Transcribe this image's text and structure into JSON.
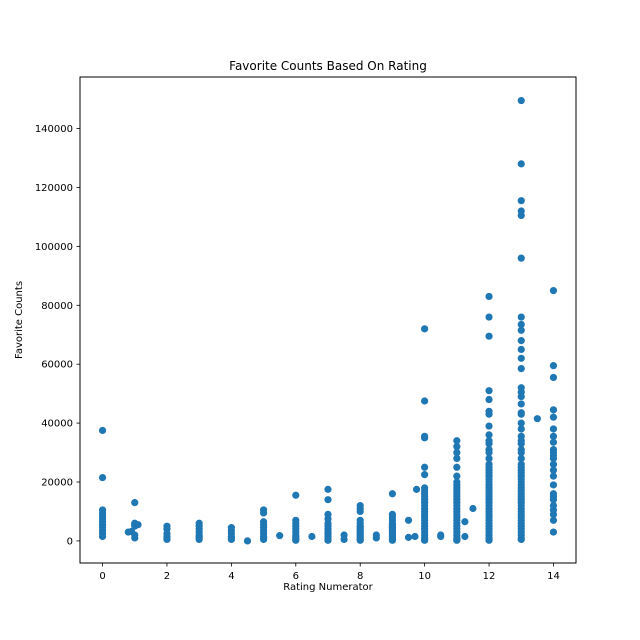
{
  "chart_data": {
    "type": "scatter",
    "title": "Favorite Counts Based On Rating",
    "xlabel": "Rating Numerator",
    "ylabel": "Favorite Counts",
    "xlim": [
      -0.7,
      14.7
    ],
    "ylim": [
      -7500,
      157500
    ],
    "xticks": [
      0,
      2,
      4,
      6,
      8,
      10,
      12,
      14
    ],
    "yticks": [
      0,
      20000,
      40000,
      60000,
      80000,
      100000,
      120000,
      140000
    ],
    "grid": false,
    "legend": "none",
    "marker_color": "#1f77b4",
    "series": [
      {
        "points": [
          [
            0,
            37500
          ],
          [
            0,
            21500
          ],
          [
            0,
            10500
          ],
          [
            0,
            9500
          ],
          [
            0,
            8500
          ],
          [
            0,
            7500
          ],
          [
            0,
            6500
          ],
          [
            0,
            5500
          ],
          [
            0,
            4500
          ],
          [
            0,
            3500
          ],
          [
            0,
            2500
          ],
          [
            0,
            1500
          ],
          [
            0.8,
            3000
          ],
          [
            0.9,
            3200
          ],
          [
            1,
            13000
          ],
          [
            1,
            6000
          ],
          [
            1,
            5500
          ],
          [
            1,
            5000
          ],
          [
            1,
            2000
          ],
          [
            1,
            1000
          ],
          [
            1.1,
            5500
          ],
          [
            2,
            5000
          ],
          [
            2,
            4000
          ],
          [
            2,
            2500
          ],
          [
            2,
            1500
          ],
          [
            2,
            1000
          ],
          [
            2,
            500
          ],
          [
            3,
            6000
          ],
          [
            3,
            5000
          ],
          [
            3,
            4000
          ],
          [
            3,
            3000
          ],
          [
            3,
            2000
          ],
          [
            3,
            1500
          ],
          [
            3,
            1000
          ],
          [
            3,
            500
          ],
          [
            4,
            4500
          ],
          [
            4,
            3500
          ],
          [
            4,
            2500
          ],
          [
            4,
            1500
          ],
          [
            4,
            1000
          ],
          [
            4,
            500
          ],
          [
            4.5,
            0
          ],
          [
            5,
            10500
          ],
          [
            5,
            9500
          ],
          [
            5,
            6500
          ],
          [
            5,
            5500
          ],
          [
            5,
            4500
          ],
          [
            5,
            3500
          ],
          [
            5,
            2500
          ],
          [
            5,
            1500
          ],
          [
            5,
            1000
          ],
          [
            5,
            500
          ],
          [
            5.5,
            1800
          ],
          [
            6,
            15500
          ],
          [
            6,
            7000
          ],
          [
            6,
            6000
          ],
          [
            6,
            5000
          ],
          [
            6,
            4000
          ],
          [
            6,
            3000
          ],
          [
            6,
            2000
          ],
          [
            6,
            1500
          ],
          [
            6,
            1000
          ],
          [
            6,
            500
          ],
          [
            6,
            200
          ],
          [
            6.5,
            1500
          ],
          [
            7,
            17500
          ],
          [
            7,
            14000
          ],
          [
            7,
            9000
          ],
          [
            7,
            7500
          ],
          [
            7,
            6000
          ],
          [
            7,
            5000
          ],
          [
            7,
            4000
          ],
          [
            7,
            3000
          ],
          [
            7,
            2500
          ],
          [
            7,
            2000
          ],
          [
            7,
            1500
          ],
          [
            7,
            1000
          ],
          [
            7,
            500
          ],
          [
            7,
            200
          ],
          [
            7.5,
            2000
          ],
          [
            7.5,
            500
          ],
          [
            8,
            12000
          ],
          [
            8,
            11000
          ],
          [
            8,
            10000
          ],
          [
            8,
            7000
          ],
          [
            8,
            6000
          ],
          [
            8,
            5000
          ],
          [
            8,
            4500
          ],
          [
            8,
            4000
          ],
          [
            8,
            3500
          ],
          [
            8,
            3000
          ],
          [
            8,
            2500
          ],
          [
            8,
            2000
          ],
          [
            8,
            1500
          ],
          [
            8,
            1000
          ],
          [
            8,
            500
          ],
          [
            8,
            200
          ],
          [
            8.5,
            2000
          ],
          [
            8.5,
            1000
          ],
          [
            9,
            16000
          ],
          [
            9,
            9000
          ],
          [
            9,
            8000
          ],
          [
            9,
            7000
          ],
          [
            9,
            6000
          ],
          [
            9,
            5500
          ],
          [
            9,
            5000
          ],
          [
            9,
            4500
          ],
          [
            9,
            4000
          ],
          [
            9,
            3500
          ],
          [
            9,
            3000
          ],
          [
            9,
            2500
          ],
          [
            9,
            2000
          ],
          [
            9,
            1500
          ],
          [
            9,
            1000
          ],
          [
            9,
            500
          ],
          [
            9,
            200
          ],
          [
            9.5,
            7000
          ],
          [
            9.5,
            1200
          ],
          [
            9.7,
            1500
          ],
          [
            9.75,
            17500
          ],
          [
            10,
            72000
          ],
          [
            10,
            47500
          ],
          [
            10,
            35500
          ],
          [
            10,
            35000
          ],
          [
            10,
            25000
          ],
          [
            10,
            22500
          ],
          [
            10,
            18000
          ],
          [
            10,
            17000
          ],
          [
            10,
            16000
          ],
          [
            10,
            15000
          ],
          [
            10,
            14000
          ],
          [
            10,
            13000
          ],
          [
            10,
            12000
          ],
          [
            10,
            11000
          ],
          [
            10,
            10000
          ],
          [
            10,
            9000
          ],
          [
            10,
            8000
          ],
          [
            10,
            7000
          ],
          [
            10,
            6000
          ],
          [
            10,
            5000
          ],
          [
            10,
            4000
          ],
          [
            10,
            3000
          ],
          [
            10,
            2000
          ],
          [
            10,
            1000
          ],
          [
            10,
            500
          ],
          [
            10,
            200
          ],
          [
            10.5,
            2000
          ],
          [
            10.5,
            1500
          ],
          [
            11,
            34000
          ],
          [
            11,
            32000
          ],
          [
            11,
            30000
          ],
          [
            11,
            28000
          ],
          [
            11,
            25000
          ],
          [
            11,
            22000
          ],
          [
            11,
            20000
          ],
          [
            11,
            19000
          ],
          [
            11,
            18000
          ],
          [
            11,
            17000
          ],
          [
            11,
            16000
          ],
          [
            11,
            15000
          ],
          [
            11,
            14000
          ],
          [
            11,
            13000
          ],
          [
            11,
            12000
          ],
          [
            11,
            11000
          ],
          [
            11,
            10000
          ],
          [
            11,
            9000
          ],
          [
            11,
            8000
          ],
          [
            11,
            7000
          ],
          [
            11,
            6000
          ],
          [
            11,
            5000
          ],
          [
            11,
            4000
          ],
          [
            11,
            3000
          ],
          [
            11,
            2000
          ],
          [
            11,
            1000
          ],
          [
            11,
            500
          ],
          [
            11,
            200
          ],
          [
            11.25,
            6500
          ],
          [
            11.25,
            1500
          ],
          [
            11.5,
            11000
          ],
          [
            12,
            83000
          ],
          [
            12,
            76000
          ],
          [
            12,
            69500
          ],
          [
            12,
            51000
          ],
          [
            12,
            48000
          ],
          [
            12,
            44000
          ],
          [
            12,
            43000
          ],
          [
            12,
            39000
          ],
          [
            12,
            36000
          ],
          [
            12,
            34000
          ],
          [
            12,
            33000
          ],
          [
            12,
            31000
          ],
          [
            12,
            30000
          ],
          [
            12,
            28000
          ],
          [
            12,
            26000
          ],
          [
            12,
            25000
          ],
          [
            12,
            24000
          ],
          [
            12,
            23000
          ],
          [
            12,
            22000
          ],
          [
            12,
            21000
          ],
          [
            12,
            20000
          ],
          [
            12,
            19000
          ],
          [
            12,
            18000
          ],
          [
            12,
            17000
          ],
          [
            12,
            16000
          ],
          [
            12,
            15000
          ],
          [
            12,
            14000
          ],
          [
            12,
            13000
          ],
          [
            12,
            12000
          ],
          [
            12,
            11000
          ],
          [
            12,
            10000
          ],
          [
            12,
            9000
          ],
          [
            12,
            8000
          ],
          [
            12,
            7000
          ],
          [
            12,
            6000
          ],
          [
            12,
            5000
          ],
          [
            12,
            4000
          ],
          [
            12,
            3000
          ],
          [
            12,
            2000
          ],
          [
            12,
            1000
          ],
          [
            12,
            500
          ],
          [
            12,
            200
          ],
          [
            13,
            149500
          ],
          [
            13,
            128000
          ],
          [
            13,
            115500
          ],
          [
            13,
            112000
          ],
          [
            13,
            110500
          ],
          [
            13,
            96000
          ],
          [
            13,
            76000
          ],
          [
            13,
            73500
          ],
          [
            13,
            71500
          ],
          [
            13,
            68000
          ],
          [
            13,
            65000
          ],
          [
            13,
            62000
          ],
          [
            13,
            58500
          ],
          [
            13,
            52000
          ],
          [
            13,
            50500
          ],
          [
            13,
            49000
          ],
          [
            13,
            46500
          ],
          [
            13,
            43500
          ],
          [
            13,
            43000
          ],
          [
            13,
            40000
          ],
          [
            13,
            38000
          ],
          [
            13,
            35500
          ],
          [
            13,
            34000
          ],
          [
            13,
            33000
          ],
          [
            13,
            31000
          ],
          [
            13,
            30000
          ],
          [
            13,
            28000
          ],
          [
            13,
            26000
          ],
          [
            13,
            25000
          ],
          [
            13,
            24000
          ],
          [
            13,
            23000
          ],
          [
            13,
            22000
          ],
          [
            13,
            21000
          ],
          [
            13,
            20000
          ],
          [
            13,
            19000
          ],
          [
            13,
            18000
          ],
          [
            13,
            17000
          ],
          [
            13,
            16000
          ],
          [
            13,
            15000
          ],
          [
            13,
            14000
          ],
          [
            13,
            13000
          ],
          [
            13,
            12000
          ],
          [
            13,
            11000
          ],
          [
            13,
            10000
          ],
          [
            13,
            9000
          ],
          [
            13,
            8000
          ],
          [
            13,
            7000
          ],
          [
            13,
            6000
          ],
          [
            13,
            5000
          ],
          [
            13,
            4000
          ],
          [
            13,
            3000
          ],
          [
            13,
            2000
          ],
          [
            13,
            1000
          ],
          [
            13,
            500
          ],
          [
            13.5,
            41500
          ],
          [
            14,
            85000
          ],
          [
            14,
            59500
          ],
          [
            14,
            55500
          ],
          [
            14,
            44500
          ],
          [
            14,
            42000
          ],
          [
            14,
            38000
          ],
          [
            14,
            35500
          ],
          [
            14,
            33500
          ],
          [
            14,
            31000
          ],
          [
            14,
            30000
          ],
          [
            14,
            29000
          ],
          [
            14,
            28000
          ],
          [
            14,
            26000
          ],
          [
            14,
            24000
          ],
          [
            14,
            22000
          ],
          [
            14,
            19000
          ],
          [
            14,
            16000
          ],
          [
            14,
            15000
          ],
          [
            14,
            14000
          ],
          [
            14,
            12000
          ],
          [
            14,
            10500
          ],
          [
            14,
            9000
          ],
          [
            14,
            7000
          ],
          [
            14,
            3000
          ]
        ]
      }
    ]
  }
}
